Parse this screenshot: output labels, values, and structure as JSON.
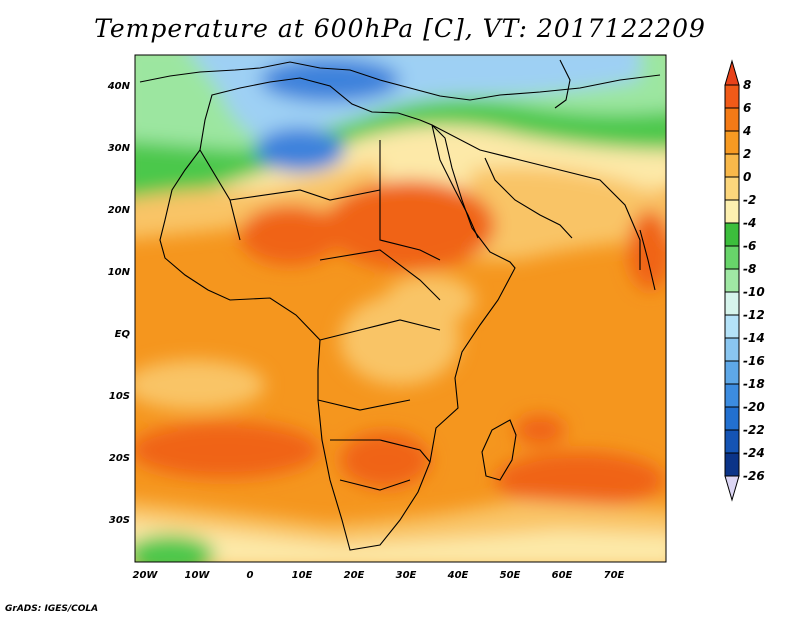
{
  "title": "Temperature at 600hPa [C], VT: 2017122209",
  "credit": "GrADS: IGES/COLA",
  "map": {
    "lon_labels": [
      "20W",
      "10W",
      "0",
      "10E",
      "20E",
      "30E",
      "40E",
      "50E",
      "60E",
      "70E"
    ],
    "lat_labels": [
      "40N",
      "30N",
      "20N",
      "10N",
      "EQ",
      "10S",
      "20S",
      "30S"
    ]
  },
  "colorbar": {
    "labels": [
      "8",
      "6",
      "4",
      "2",
      "0",
      "-2",
      "-4",
      "-6",
      "-8",
      "-10",
      "-12",
      "-14",
      "-16",
      "-18",
      "-20",
      "-22",
      "-24",
      "-26"
    ],
    "colors": [
      "#e8421a",
      "#f05a18",
      "#f47a16",
      "#f79a22",
      "#f8b84a",
      "#fcd67c",
      "#fdf0b0",
      "#3cbe3c",
      "#68d46a",
      "#a0e8a4",
      "#d6f4ec",
      "#b4e2f8",
      "#8ac6f0",
      "#5ea8e8",
      "#3c8ce0",
      "#2270d0",
      "#1554b4",
      "#0b3488",
      "#0a1a6a"
    ]
  },
  "colors": {
    "warm_dark": "#f06418",
    "warm_mid": "#f5961e",
    "warm_light": "#f9c466",
    "pale": "#fde9a8",
    "green": "#4cc84c",
    "light_green": "#9ce6a0",
    "cold_blue": "#3c82dc",
    "light_blue": "#9ed0f4"
  }
}
